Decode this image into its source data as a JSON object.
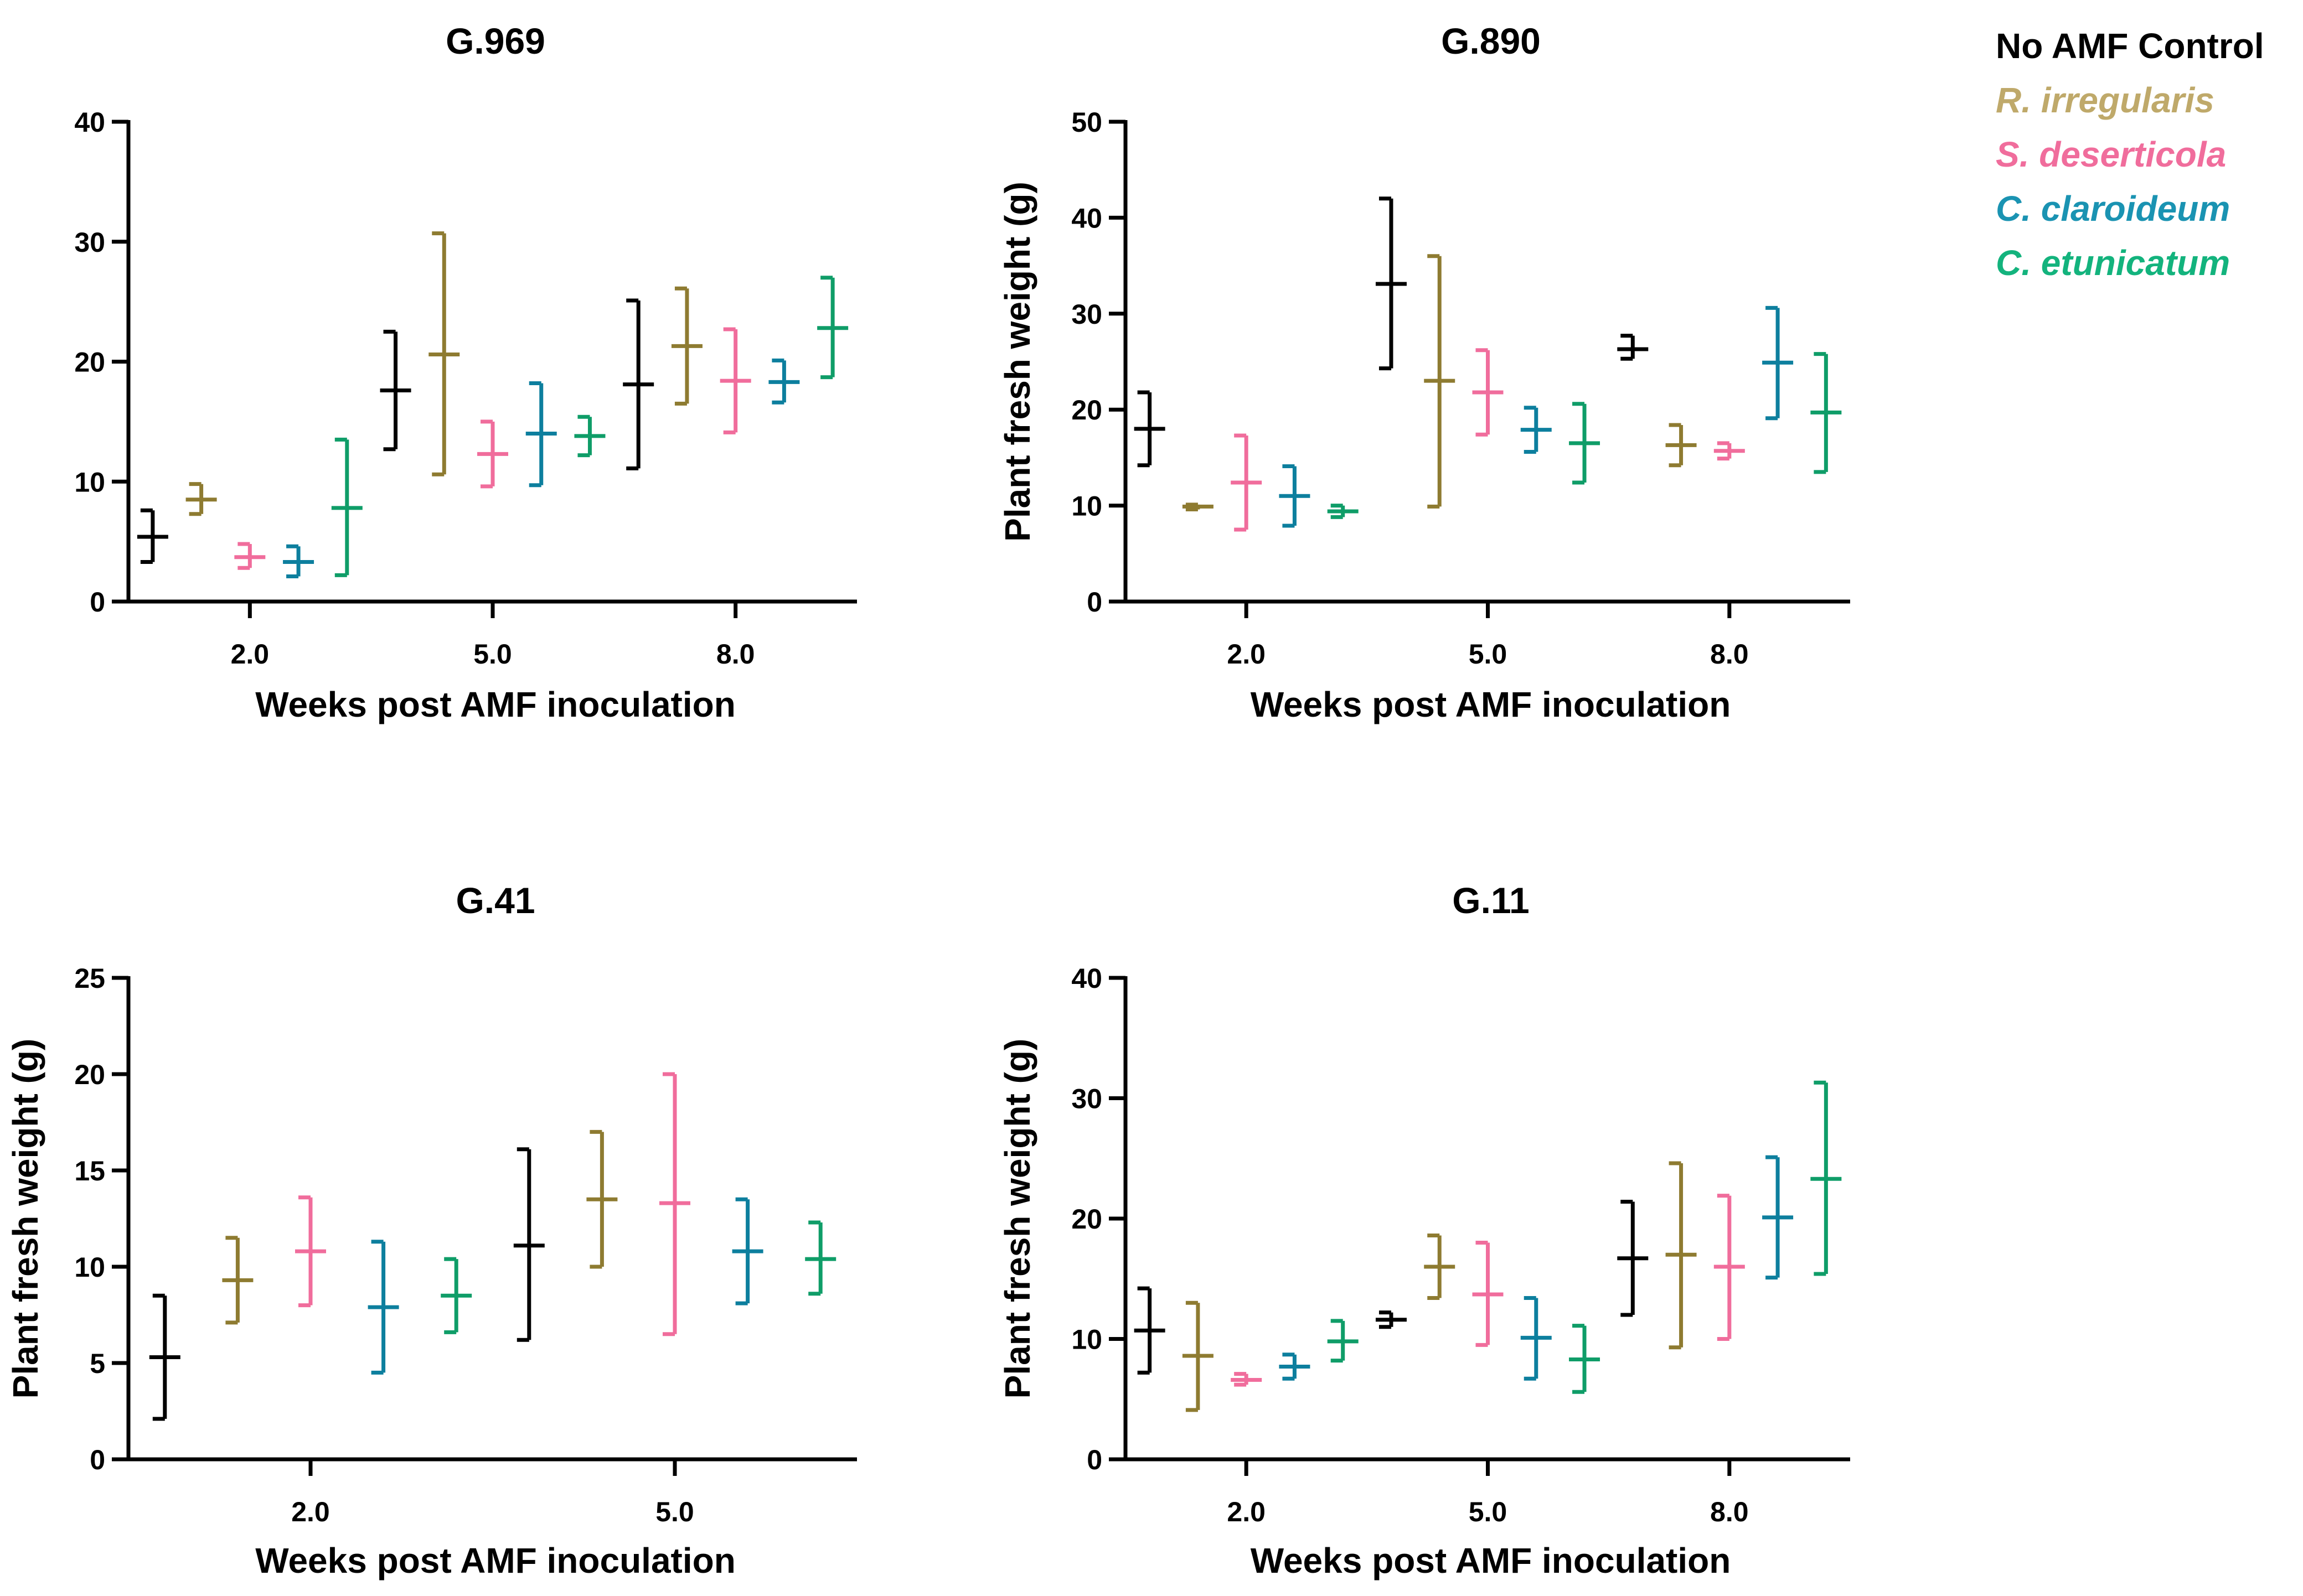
{
  "legend": [
    {
      "name": "No AMF Control",
      "color": "#000000",
      "italic": false
    },
    {
      "name": "R. irregularis",
      "color": "#BFA96A",
      "italic": true
    },
    {
      "name": "S. deserticola",
      "color": "#F06D9C",
      "italic": true
    },
    {
      "name": "C. claroideum",
      "color": "#1A93B2",
      "italic": true
    },
    {
      "name": "C. etunicatum",
      "color": "#13B37D",
      "italic": true
    }
  ],
  "chart_data": [
    {
      "type": "errorbar",
      "title": "G.969",
      "xlabel": "Weeks post AMF inoculation",
      "ylabel": "",
      "ylim": [
        0,
        40
      ],
      "yticks": [
        0,
        10,
        20,
        30,
        40
      ],
      "categories": [
        "2.0",
        "5.0",
        "8.0"
      ],
      "series": [
        {
          "name": "No AMF Control",
          "color": "#000000",
          "points": [
            {
              "mean": 5.4,
              "low": 3.3,
              "high": 7.6
            },
            {
              "mean": 17.6,
              "low": 12.7,
              "high": 22.5
            },
            {
              "mean": 18.1,
              "low": 11.1,
              "high": 25.1
            }
          ]
        },
        {
          "name": "R. irregularis",
          "color": "#8E7B31",
          "points": [
            {
              "mean": 8.5,
              "low": 7.3,
              "high": 9.8
            },
            {
              "mean": 20.6,
              "low": 10.6,
              "high": 30.7
            },
            {
              "mean": 21.3,
              "low": 16.5,
              "high": 26.1
            }
          ]
        },
        {
          "name": "S. deserticola",
          "color": "#F06D9C",
          "points": [
            {
              "mean": 3.7,
              "low": 2.8,
              "high": 4.8
            },
            {
              "mean": 12.3,
              "low": 9.6,
              "high": 15.0
            },
            {
              "mean": 18.4,
              "low": 14.1,
              "high": 22.7
            }
          ]
        },
        {
          "name": "C. claroideum",
          "color": "#0D7F9E",
          "points": [
            {
              "mean": 3.3,
              "low": 2.1,
              "high": 4.6
            },
            {
              "mean": 14.0,
              "low": 9.7,
              "high": 18.2
            },
            {
              "mean": 18.3,
              "low": 16.6,
              "high": 20.1
            }
          ]
        },
        {
          "name": "C. etunicatum",
          "color": "#0F9D68",
          "points": [
            {
              "mean": 7.8,
              "low": 2.2,
              "high": 13.5
            },
            {
              "mean": 13.8,
              "low": 12.2,
              "high": 15.4
            },
            {
              "mean": 22.8,
              "low": 18.7,
              "high": 27.0
            }
          ]
        }
      ]
    },
    {
      "type": "errorbar",
      "title": "G.890",
      "xlabel": "Weeks post AMF inoculation",
      "ylabel": "Plant fresh weight (g)",
      "ylim": [
        0,
        50
      ],
      "yticks": [
        0,
        10,
        20,
        30,
        40,
        50
      ],
      "categories": [
        "2.0",
        "5.0",
        "8.0"
      ],
      "series": [
        {
          "name": "No AMF Control",
          "color": "#000000",
          "points": [
            {
              "mean": 18.0,
              "low": 14.2,
              "high": 21.8
            },
            {
              "mean": 33.1,
              "low": 24.3,
              "high": 42.0
            },
            {
              "mean": 26.3,
              "low": 25.3,
              "high": 27.7
            }
          ]
        },
        {
          "name": "R. irregularis",
          "color": "#8E7B31",
          "points": [
            {
              "mean": 9.9,
              "low": 9.6,
              "high": 10.1
            },
            {
              "mean": 23.0,
              "low": 9.9,
              "high": 36.0
            },
            {
              "mean": 16.3,
              "low": 14.2,
              "high": 18.4
            }
          ]
        },
        {
          "name": "S. deserticola",
          "color": "#F06D9C",
          "points": [
            {
              "mean": 12.4,
              "low": 7.5,
              "high": 17.3
            },
            {
              "mean": 21.8,
              "low": 17.4,
              "high": 26.2
            },
            {
              "mean": 15.7,
              "low": 14.9,
              "high": 16.5
            }
          ]
        },
        {
          "name": "C. claroideum",
          "color": "#0D7F9E",
          "points": [
            {
              "mean": 11.0,
              "low": 7.9,
              "high": 14.1
            },
            {
              "mean": 17.9,
              "low": 15.6,
              "high": 20.2
            },
            {
              "mean": 24.9,
              "low": 19.1,
              "high": 30.6
            }
          ]
        },
        {
          "name": "C. etunicatum",
          "color": "#0F9D68",
          "points": [
            {
              "mean": 9.4,
              "low": 8.8,
              "high": 10.0
            },
            {
              "mean": 16.5,
              "low": 12.4,
              "high": 20.6
            },
            {
              "mean": 19.7,
              "low": 13.5,
              "high": 25.8
            }
          ]
        }
      ]
    },
    {
      "type": "errorbar",
      "title": "G.41",
      "xlabel": "Weeks post AMF inoculation",
      "ylabel": "Plant fresh weight (g)",
      "ylim": [
        0,
        25
      ],
      "yticks": [
        0,
        5,
        10,
        15,
        20,
        25
      ],
      "categories": [
        "2.0",
        "5.0"
      ],
      "series": [
        {
          "name": "No AMF Control",
          "color": "#000000",
          "points": [
            {
              "mean": 5.3,
              "low": 2.1,
              "high": 8.5
            },
            {
              "mean": 11.1,
              "low": 6.2,
              "high": 16.1
            }
          ]
        },
        {
          "name": "R. irregularis",
          "color": "#8E7B31",
          "points": [
            {
              "mean": 9.3,
              "low": 7.1,
              "high": 11.5
            },
            {
              "mean": 13.5,
              "low": 10.0,
              "high": 17.0
            }
          ]
        },
        {
          "name": "S. deserticola",
          "color": "#F06D9C",
          "points": [
            {
              "mean": 10.8,
              "low": 8.0,
              "high": 13.6
            },
            {
              "mean": 13.3,
              "low": 6.5,
              "high": 20.0
            }
          ]
        },
        {
          "name": "C. claroideum",
          "color": "#0D7F9E",
          "points": [
            {
              "mean": 7.9,
              "low": 4.5,
              "high": 11.3
            },
            {
              "mean": 10.8,
              "low": 8.1,
              "high": 13.5
            }
          ]
        },
        {
          "name": "C. etunicatum",
          "color": "#0F9D68",
          "points": [
            {
              "mean": 8.5,
              "low": 6.6,
              "high": 10.4
            },
            {
              "mean": 10.4,
              "low": 8.6,
              "high": 12.3
            }
          ]
        }
      ]
    },
    {
      "type": "errorbar",
      "title": "G.11",
      "xlabel": "Weeks post AMF inoculation",
      "ylabel": "Plant fresh weight (g)",
      "ylim": [
        0,
        40
      ],
      "yticks": [
        0,
        10,
        20,
        30,
        40
      ],
      "categories": [
        "2.0",
        "5.0",
        "8.0"
      ],
      "series": [
        {
          "name": "No AMF Control",
          "color": "#000000",
          "points": [
            {
              "mean": 10.7,
              "low": 7.2,
              "high": 14.2
            },
            {
              "mean": 11.6,
              "low": 11.0,
              "high": 12.2
            },
            {
              "mean": 16.7,
              "low": 12.0,
              "high": 21.4
            }
          ]
        },
        {
          "name": "R. irregularis",
          "color": "#8E7B31",
          "points": [
            {
              "mean": 8.6,
              "low": 4.1,
              "high": 13.0
            },
            {
              "mean": 16.0,
              "low": 13.4,
              "high": 18.6
            },
            {
              "mean": 17.0,
              "low": 9.3,
              "high": 24.6
            }
          ]
        },
        {
          "name": "S. deserticola",
          "color": "#F06D9C",
          "points": [
            {
              "mean": 6.6,
              "low": 6.2,
              "high": 7.1
            },
            {
              "mean": 13.7,
              "low": 9.5,
              "high": 18.0
            },
            {
              "mean": 16.0,
              "low": 10.0,
              "high": 21.9
            }
          ]
        },
        {
          "name": "C. claroideum",
          "color": "#0D7F9E",
          "points": [
            {
              "mean": 7.7,
              "low": 6.7,
              "high": 8.7
            },
            {
              "mean": 10.1,
              "low": 6.7,
              "high": 13.4
            },
            {
              "mean": 20.1,
              "low": 15.1,
              "high": 25.1
            }
          ]
        },
        {
          "name": "C. etunicatum",
          "color": "#0F9D68",
          "points": [
            {
              "mean": 9.8,
              "low": 8.2,
              "high": 11.5
            },
            {
              "mean": 8.3,
              "low": 5.6,
              "high": 11.1
            },
            {
              "mean": 23.3,
              "low": 15.4,
              "high": 31.3
            }
          ]
        }
      ]
    }
  ]
}
